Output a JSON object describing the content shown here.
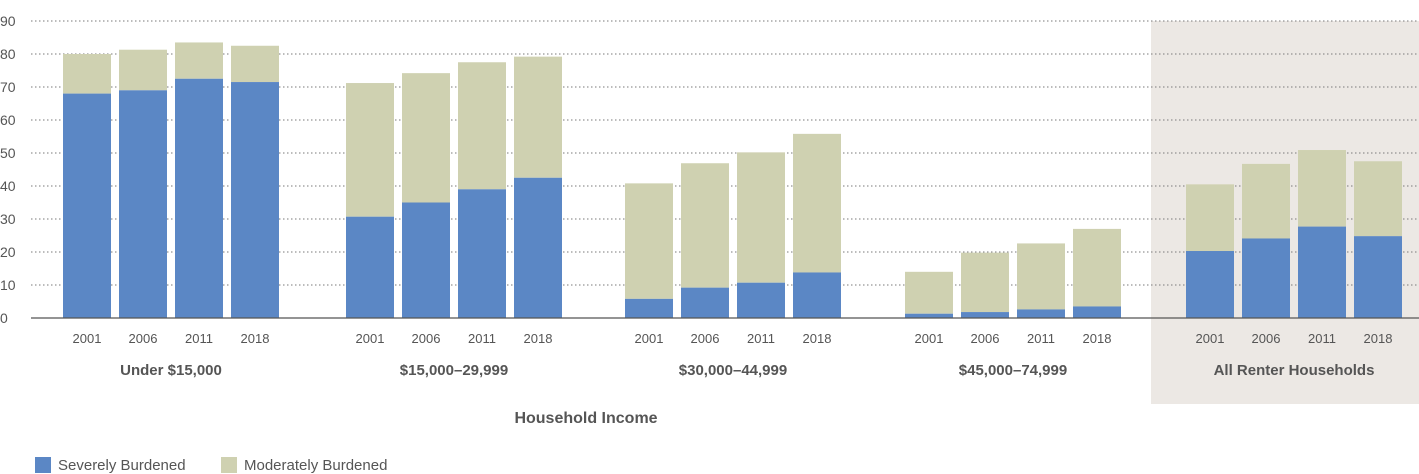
{
  "chart_data": {
    "type": "bar",
    "stacked": true,
    "title": "",
    "xlabel": "Household Income",
    "ylabel": "",
    "ylim": [
      0,
      90
    ],
    "yticks": [
      0,
      10,
      20,
      30,
      40,
      50,
      60,
      70,
      80,
      90
    ],
    "grid": "horizontal-dotted",
    "legend_position": "bottom-left",
    "groups": [
      {
        "label": "Under $15,000",
        "years": [
          "2001",
          "2006",
          "2011",
          "2018"
        ],
        "severe": [
          68,
          69,
          72.5,
          71.5
        ],
        "moderate": [
          12,
          12.3,
          11,
          11
        ],
        "highlight": false
      },
      {
        "label": "$15,000–29,999",
        "years": [
          "2001",
          "2006",
          "2011",
          "2018"
        ],
        "severe": [
          30.7,
          35,
          39,
          42.5
        ],
        "moderate": [
          40.5,
          39.2,
          38.5,
          36.7
        ],
        "highlight": false
      },
      {
        "label": "$30,000–44,999",
        "years": [
          "2001",
          "2006",
          "2011",
          "2018"
        ],
        "severe": [
          5.8,
          9.2,
          10.7,
          13.8
        ],
        "moderate": [
          35,
          37.7,
          39.5,
          42
        ],
        "highlight": false
      },
      {
        "label": "$45,000–74,999",
        "years": [
          "2001",
          "2006",
          "2011",
          "2018"
        ],
        "severe": [
          1.3,
          1.8,
          2.6,
          3.5
        ],
        "moderate": [
          12.7,
          18,
          20,
          23.5
        ],
        "highlight": false
      },
      {
        "label": "All Renter Households",
        "years": [
          "2001",
          "2006",
          "2011",
          "2018"
        ],
        "severe": [
          20.3,
          24.1,
          27.7,
          24.8
        ],
        "moderate": [
          20.2,
          22.6,
          23.2,
          22.7
        ],
        "highlight": true
      }
    ],
    "series": [
      {
        "name": "Severely Burdened",
        "color": "#5b87c5"
      },
      {
        "name": "Moderately Burdened",
        "color": "#cfd1b1"
      }
    ],
    "highlight_color": "#ece8e4"
  }
}
